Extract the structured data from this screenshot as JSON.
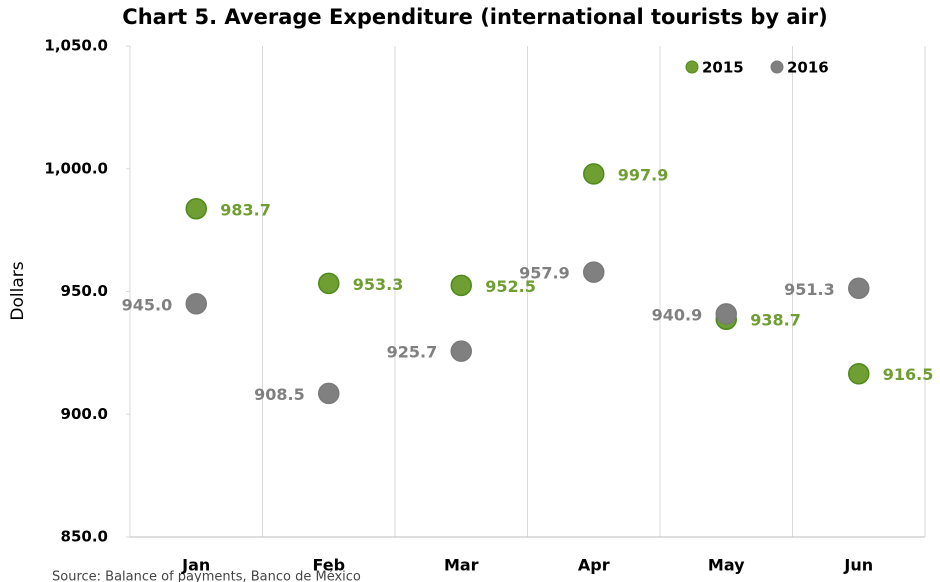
{
  "chart_data": {
    "type": "scatter",
    "title": "Chart 5. Average Expenditure (international tourists by air)",
    "y_label": "Dollars",
    "source": "Source: Balance of payments, Banco de México",
    "categories": [
      "Jan",
      "Feb",
      "Mar",
      "Apr",
      "May",
      "Jun"
    ],
    "series": [
      {
        "name": "2015",
        "color": "#6f9e33",
        "values": [
          983.7,
          953.3,
          952.5,
          997.9,
          938.7,
          916.5
        ],
        "value_labels": [
          "983.7",
          "953.3",
          "952.5",
          "997.9",
          "938.7",
          "916.5"
        ]
      },
      {
        "name": "2016",
        "color": "#808080",
        "values": [
          945.0,
          908.5,
          925.7,
          957.9,
          940.9,
          951.3
        ],
        "value_labels": [
          "945.0",
          "908.5",
          "925.7",
          "957.9",
          "940.9",
          "951.3"
        ]
      }
    ],
    "ylim": [
      850,
      1050
    ],
    "yticks": [
      {
        "value": 850,
        "label": "850.0"
      },
      {
        "value": 900,
        "label": "900.0"
      },
      {
        "value": 950,
        "label": "950.0"
      },
      {
        "value": 1000,
        "label": "1,000.0"
      },
      {
        "value": 1050,
        "label": "1,050.0"
      }
    ],
    "grid": true,
    "legend": "top-right"
  }
}
